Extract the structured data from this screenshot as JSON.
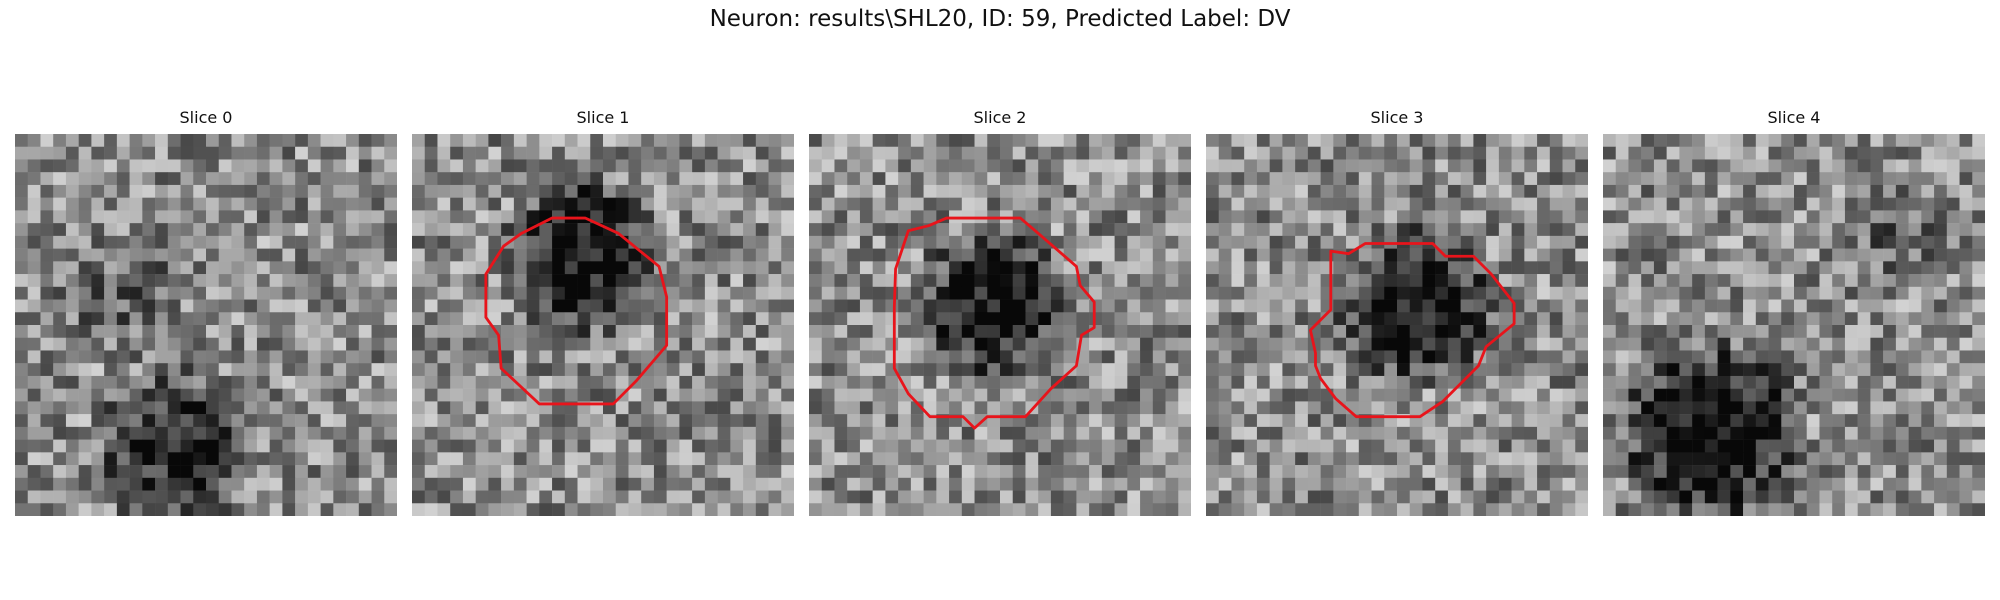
{
  "figure": {
    "title": "Neuron: results\\SHL20, ID: 59, Predicted Label: DV"
  },
  "panels": [
    {
      "title": "Slice 0",
      "contour": false
    },
    {
      "title": "Slice 1",
      "contour": true
    },
    {
      "title": "Slice 2",
      "contour": true
    },
    {
      "title": "Slice 3",
      "contour": true
    },
    {
      "title": "Slice 4",
      "contour": false
    }
  ],
  "colors": {
    "contour": "#e8141b",
    "background": "#ffffff"
  }
}
